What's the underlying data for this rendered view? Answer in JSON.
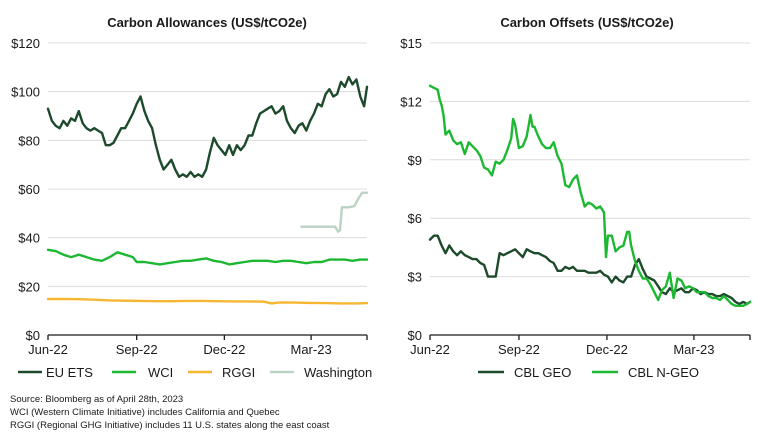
{
  "chart_data": [
    {
      "type": "line",
      "title": "Carbon Allowances (US$/tCO2e)",
      "xlabel": "",
      "ylabel": "",
      "x_unit": "days since 2022-06-01",
      "xlim": [
        0,
        331
      ],
      "ylim": [
        0,
        120
      ],
      "y_ticks": [
        0,
        20,
        40,
        60,
        80,
        100,
        120
      ],
      "y_tick_labels": [
        "$0",
        "$20",
        "$40",
        "$60",
        "$80",
        "$100",
        "$120"
      ],
      "x_ticks": [
        0,
        92,
        183,
        273
      ],
      "x_tick_labels": [
        "Jun-22",
        "Sep-22",
        "Dec-22",
        "Mar-23"
      ],
      "grid": true,
      "legend": "bottom",
      "series": [
        {
          "name": "EU ETS",
          "color": "#1c4a2a",
          "x": [
            0,
            4,
            8,
            12,
            16,
            20,
            24,
            28,
            32,
            36,
            40,
            44,
            48,
            52,
            56,
            60,
            64,
            68,
            72,
            76,
            80,
            84,
            88,
            92,
            96,
            100,
            104,
            108,
            112,
            116,
            120,
            124,
            128,
            132,
            136,
            140,
            144,
            148,
            152,
            156,
            160,
            164,
            168,
            172,
            176,
            180,
            184,
            188,
            192,
            196,
            200,
            204,
            208,
            212,
            216,
            220,
            224,
            228,
            232,
            236,
            240,
            244,
            248,
            252,
            256,
            260,
            264,
            268,
            272,
            276,
            280,
            284,
            288,
            292,
            296,
            300,
            304,
            308,
            312,
            316,
            320,
            324,
            328,
            331
          ],
          "values": [
            93,
            88,
            86,
            85,
            88,
            86,
            89,
            88,
            92,
            87,
            85,
            84,
            85,
            84,
            83,
            78,
            78,
            79,
            82,
            85,
            85,
            88,
            91,
            95,
            98,
            92,
            88,
            85,
            78,
            72,
            68,
            70,
            72,
            68,
            65,
            66,
            65,
            67,
            65,
            66,
            65,
            68,
            75,
            81,
            78,
            76,
            74,
            78,
            74,
            78,
            76,
            78,
            82,
            82,
            87,
            91,
            92,
            93,
            94,
            91,
            92,
            94,
            88,
            85,
            83,
            86,
            87,
            84,
            88,
            91,
            95,
            94,
            99,
            101,
            98,
            99,
            104,
            102,
            106,
            103,
            105,
            98,
            94,
            102
          ]
        },
        {
          "name": "WCI",
          "color": "#1db832",
          "x": [
            0,
            8,
            16,
            24,
            32,
            40,
            48,
            56,
            64,
            72,
            80,
            88,
            92,
            100,
            108,
            116,
            124,
            132,
            140,
            148,
            156,
            164,
            172,
            180,
            188,
            196,
            204,
            212,
            220,
            228,
            236,
            244,
            252,
            260,
            268,
            276,
            284,
            292,
            300,
            308,
            316,
            324,
            331
          ],
          "values": [
            35,
            34.5,
            33,
            32,
            33,
            32,
            31,
            30.5,
            32,
            34,
            33,
            32,
            30,
            30,
            29.5,
            29,
            29.5,
            30,
            30.5,
            30.5,
            31,
            31.5,
            30.5,
            30,
            29,
            29.5,
            30,
            30.5,
            30.5,
            30.5,
            30,
            30.5,
            30.5,
            30,
            29.5,
            30,
            30,
            31,
            31,
            31,
            30.5,
            31,
            31
          ]
        },
        {
          "name": "RGGI",
          "color": "#f5b731",
          "x": [
            0,
            16,
            32,
            48,
            64,
            80,
            96,
            112,
            128,
            144,
            160,
            176,
            192,
            208,
            224,
            232,
            240,
            256,
            272,
            288,
            304,
            320,
            331
          ],
          "values": [
            14.8,
            14.8,
            14.7,
            14.5,
            14.2,
            14.1,
            14.0,
            13.9,
            13.9,
            14.0,
            14.0,
            13.9,
            13.8,
            13.8,
            13.7,
            13.0,
            13.4,
            13.3,
            13.2,
            13.1,
            13.0,
            13.0,
            13.1
          ]
        },
        {
          "name": "Washington",
          "color": "#b9d3c4",
          "x": [
            263,
            270,
            280,
            290,
            298,
            301,
            303,
            305,
            308,
            312,
            318,
            322,
            326,
            331
          ],
          "values": [
            44.5,
            44.5,
            44.5,
            44.5,
            44.5,
            42.5,
            43,
            52.5,
            52.5,
            52.5,
            53,
            56,
            58.5,
            58.5
          ]
        }
      ]
    },
    {
      "type": "line",
      "title": "Carbon Offsets (US$/tCO2e)",
      "xlabel": "",
      "ylabel": "",
      "x_unit": "days since 2022-06-01",
      "xlim": [
        0,
        331
      ],
      "ylim": [
        0,
        15
      ],
      "y_ticks": [
        0,
        3,
        6,
        9,
        12,
        15
      ],
      "y_tick_labels": [
        "$0",
        "$3",
        "$6",
        "$9",
        "$12",
        "$15"
      ],
      "x_ticks": [
        0,
        92,
        183,
        273
      ],
      "x_tick_labels": [
        "Jun-22",
        "Sep-22",
        "Dec-22",
        "Mar-23"
      ],
      "grid": true,
      "legend": "bottom",
      "series": [
        {
          "name": "CBL GEO",
          "color": "#1c4a2a",
          "x": [
            0,
            4,
            8,
            12,
            16,
            20,
            24,
            28,
            32,
            36,
            40,
            44,
            48,
            52,
            56,
            60,
            64,
            68,
            72,
            76,
            80,
            84,
            88,
            92,
            96,
            100,
            104,
            108,
            112,
            116,
            120,
            124,
            128,
            132,
            136,
            140,
            144,
            148,
            152,
            156,
            160,
            164,
            168,
            172,
            176,
            180,
            184,
            188,
            192,
            196,
            200,
            204,
            208,
            212,
            216,
            220,
            224,
            228,
            232,
            236,
            240,
            244,
            248,
            252,
            256,
            260,
            264,
            268,
            272,
            276,
            280,
            284,
            288,
            292,
            296,
            300,
            304,
            308,
            312,
            316,
            320,
            324,
            328,
            331
          ],
          "values": [
            4.9,
            5.1,
            5.1,
            4.6,
            4.2,
            4.6,
            4.3,
            4.1,
            4.3,
            4.1,
            4.0,
            3.9,
            3.9,
            3.7,
            3.6,
            3.0,
            3.0,
            3.0,
            4.2,
            4.1,
            4.2,
            4.3,
            4.4,
            4.2,
            4.0,
            4.4,
            4.3,
            4.2,
            4.2,
            4.1,
            4.0,
            3.8,
            3.7,
            3.3,
            3.3,
            3.5,
            3.4,
            3.5,
            3.3,
            3.3,
            3.3,
            3.2,
            3.2,
            3.2,
            3.3,
            3.1,
            3.0,
            2.7,
            3.0,
            2.8,
            2.7,
            3.0,
            3.0,
            3.6,
            3.9,
            3.4,
            3.0,
            2.9,
            2.8,
            2.5,
            2.2,
            2.1,
            2.4,
            2.2,
            2.3,
            2.4,
            2.2,
            2.2,
            2.4,
            2.3,
            2.1,
            2.2,
            2.1,
            2.1,
            2.0,
            2.0,
            2.1,
            2.0,
            1.9,
            1.7,
            1.6,
            1.7,
            1.6,
            1.7
          ]
        },
        {
          "name": "CBL N-GEO",
          "color": "#1db832",
          "x": [
            0,
            4,
            8,
            10,
            12,
            14,
            16,
            20,
            24,
            28,
            32,
            36,
            40,
            44,
            48,
            52,
            56,
            60,
            64,
            68,
            72,
            76,
            80,
            84,
            86,
            88,
            92,
            96,
            100,
            104,
            106,
            108,
            112,
            116,
            120,
            124,
            128,
            132,
            136,
            140,
            144,
            148,
            152,
            156,
            160,
            164,
            168,
            172,
            176,
            180,
            182,
            184,
            188,
            192,
            196,
            200,
            204,
            206,
            208,
            212,
            216,
            220,
            224,
            228,
            232,
            236,
            240,
            244,
            248,
            252,
            256,
            260,
            264,
            268,
            272,
            276,
            280,
            284,
            288,
            292,
            296,
            300,
            304,
            308,
            312,
            316,
            320,
            324,
            328,
            331
          ],
          "values": [
            12.8,
            12.7,
            12.6,
            12.1,
            11.8,
            11.3,
            10.3,
            10.5,
            10.0,
            9.8,
            9.9,
            9.3,
            9.9,
            9.7,
            9.5,
            9.2,
            8.6,
            8.5,
            8.2,
            8.9,
            8.8,
            9.0,
            9.5,
            10.1,
            11.1,
            10.8,
            9.6,
            9.7,
            10.2,
            11.3,
            10.7,
            10.7,
            10.2,
            9.8,
            9.6,
            9.6,
            9.9,
            9.2,
            8.8,
            7.7,
            7.6,
            8.0,
            8.2,
            7.3,
            6.6,
            6.8,
            6.7,
            6.5,
            6.6,
            6.3,
            4.0,
            5.1,
            5.1,
            4.3,
            4.5,
            4.6,
            5.3,
            5.3,
            4.6,
            3.8,
            3.3,
            2.9,
            2.9,
            2.6,
            2.2,
            1.8,
            2.3,
            2.5,
            3.2,
            1.9,
            2.9,
            2.8,
            2.4,
            2.5,
            2.4,
            2.2,
            2.2,
            2.2,
            2.0,
            1.9,
            1.9,
            1.8,
            2.0,
            1.8,
            1.6,
            1.5,
            1.5,
            1.5,
            1.6,
            1.7
          ]
        }
      ]
    }
  ],
  "notes": [
    "Source: Bloomberg as of April 28th, 2023",
    "WCI (Western Climate Initiative) includes California and Quebec",
    "RGGI (Regional GHG Initiative) includes 11 U.S. states along the east coast"
  ]
}
